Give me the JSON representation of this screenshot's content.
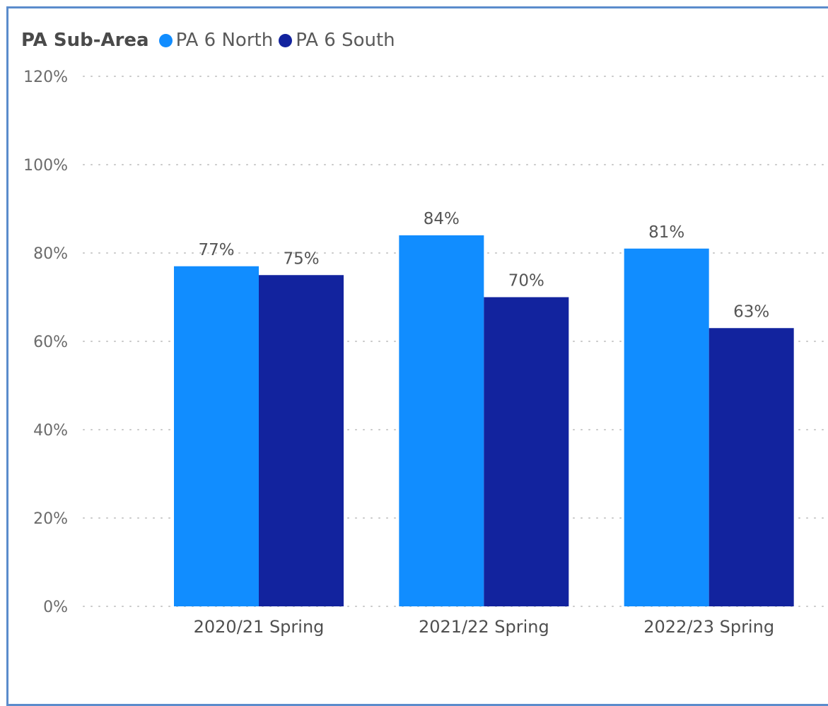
{
  "chart_data": {
    "type": "bar",
    "legend_title": "PA Sub-Area",
    "legend_position": "top-left",
    "categories": [
      "2020/21 Spring",
      "2021/22 Spring",
      "2022/23 Spring"
    ],
    "series": [
      {
        "name": "PA 6 North",
        "color": "#118dff",
        "values": [
          77,
          84,
          81
        ],
        "labels": [
          "77%",
          "84%",
          "81%"
        ]
      },
      {
        "name": "PA 6 South",
        "color": "#12239e",
        "values": [
          75,
          70,
          63
        ],
        "labels": [
          "75%",
          "70%",
          "63%"
        ]
      }
    ],
    "y_ticks": [
      "0%",
      "20%",
      "40%",
      "60%",
      "80%",
      "100%",
      "120%"
    ],
    "ylim": [
      0,
      120
    ],
    "grid": "dotted horizontal"
  }
}
